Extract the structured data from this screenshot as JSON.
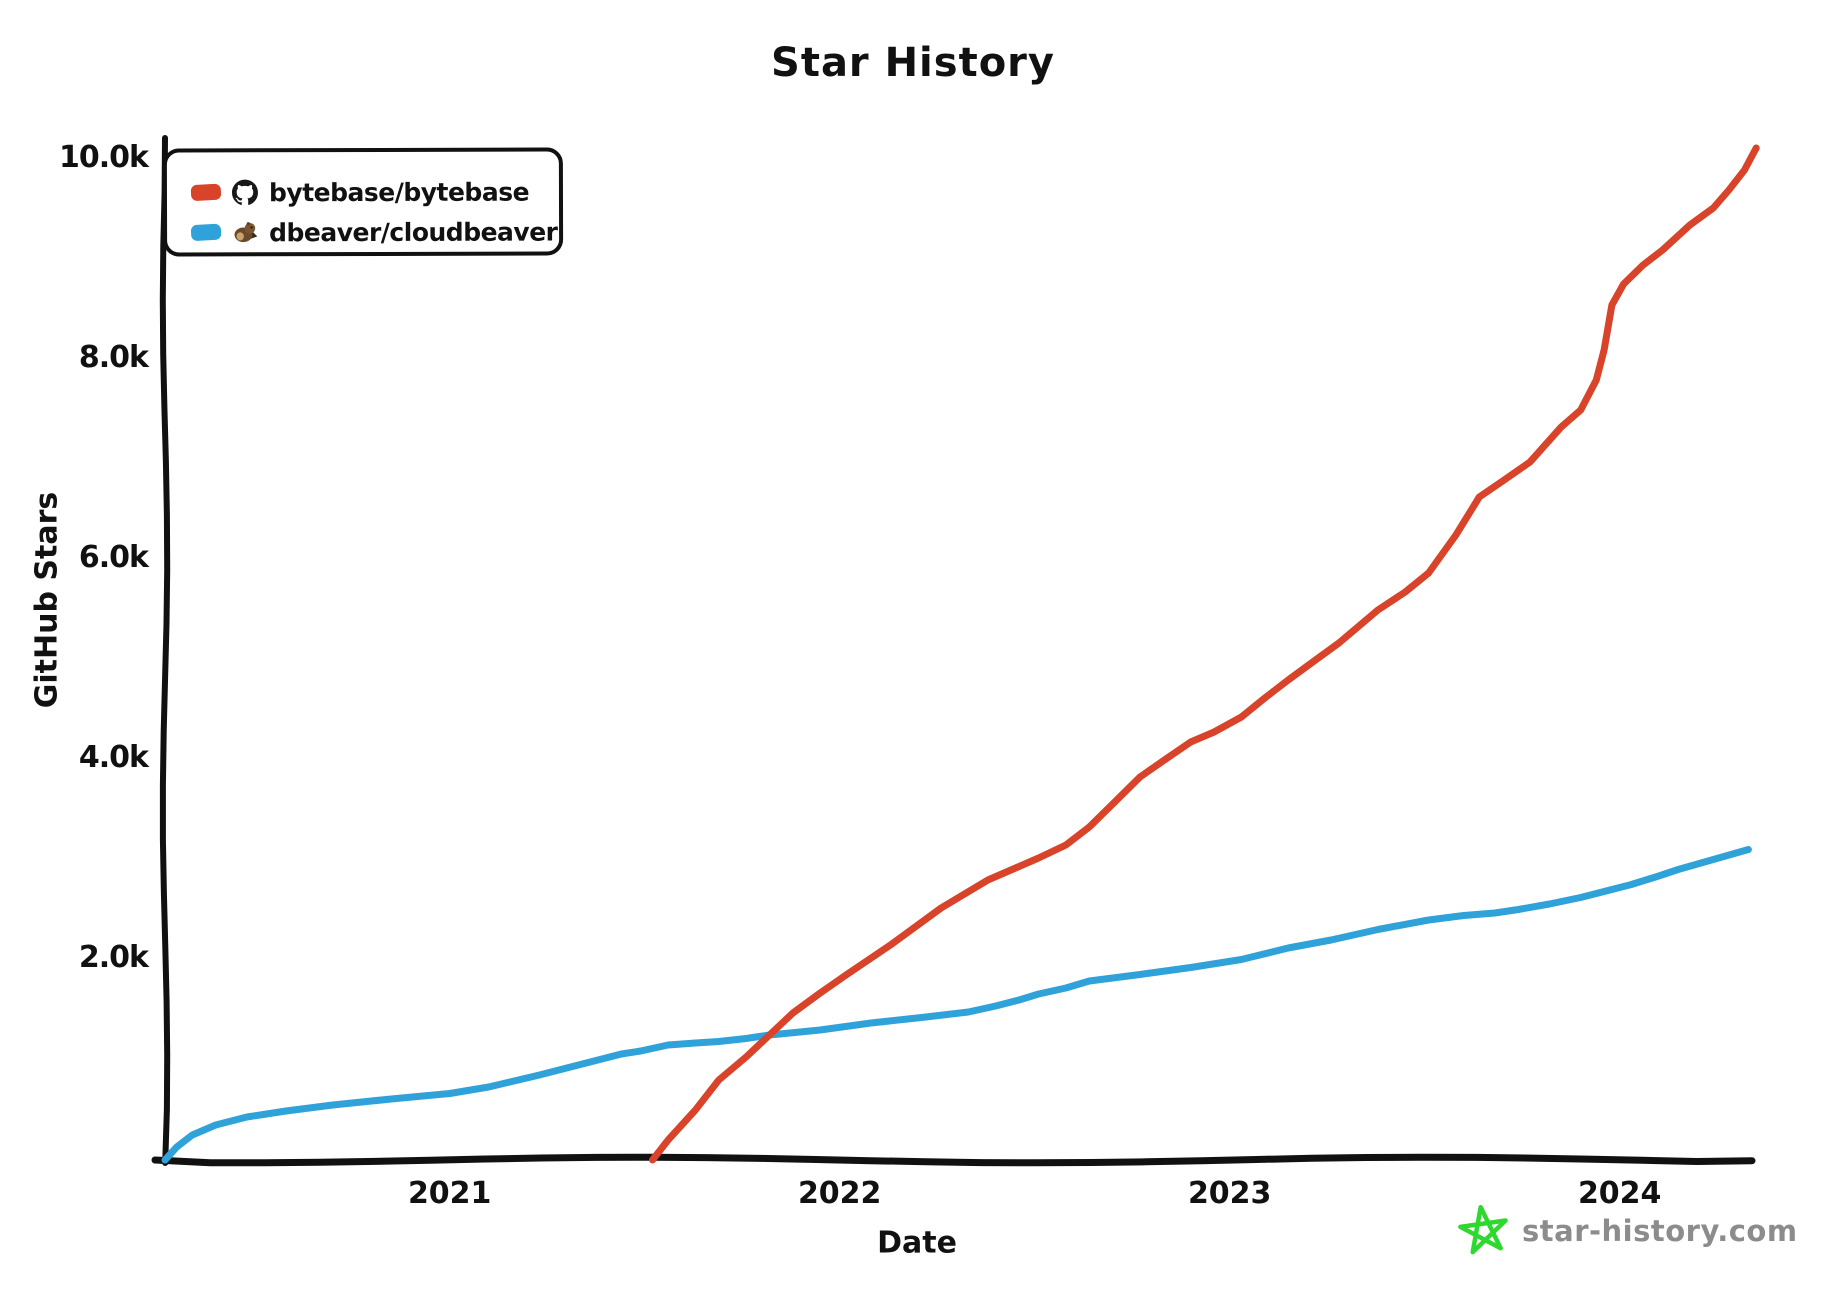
{
  "title": "Star History",
  "legend": {
    "items": [
      {
        "label": "bytebase/bytebase",
        "color": "#d8432a",
        "icon": "github-avatar"
      },
      {
        "label": "dbeaver/cloudbeaver",
        "color": "#30a2da",
        "icon": "beaver-avatar"
      }
    ]
  },
  "watermark": {
    "label": "star-history.com",
    "star_color": "#2fd82f",
    "text_color": "#8c8c8c"
  },
  "chart_data": {
    "type": "line",
    "title": "Star History",
    "xlabel": "Date",
    "ylabel": "GitHub Stars",
    "xlim": [
      2020.27,
      2024.38
    ],
    "ylim": [
      0,
      10300
    ],
    "grid": false,
    "legend_position": "top-left",
    "x_ticks": [
      {
        "value": 2021,
        "label": "2021"
      },
      {
        "value": 2022,
        "label": "2022"
      },
      {
        "value": 2023,
        "label": "2023"
      },
      {
        "value": 2024,
        "label": "2024"
      }
    ],
    "y_ticks": [
      {
        "value": 2000,
        "label": "2.0k"
      },
      {
        "value": 4000,
        "label": "4.0k"
      },
      {
        "value": 6000,
        "label": "6.0k"
      },
      {
        "value": 8000,
        "label": "8.0k"
      },
      {
        "value": 10000,
        "label": "10.0k"
      }
    ],
    "series": [
      {
        "name": "bytebase/bytebase",
        "color": "#d8432a",
        "points": [
          [
            2021.52,
            0
          ],
          [
            2021.56,
            200
          ],
          [
            2021.63,
            500
          ],
          [
            2021.69,
            800
          ],
          [
            2021.76,
            1030
          ],
          [
            2021.82,
            1250
          ],
          [
            2021.88,
            1470
          ],
          [
            2021.95,
            1670
          ],
          [
            2022.02,
            1860
          ],
          [
            2022.13,
            2150
          ],
          [
            2022.26,
            2520
          ],
          [
            2022.38,
            2800
          ],
          [
            2022.51,
            3020
          ],
          [
            2022.58,
            3150
          ],
          [
            2022.64,
            3330
          ],
          [
            2022.7,
            3560
          ],
          [
            2022.77,
            3830
          ],
          [
            2022.84,
            4020
          ],
          [
            2022.9,
            4180
          ],
          [
            2022.96,
            4280
          ],
          [
            2023.03,
            4430
          ],
          [
            2023.09,
            4620
          ],
          [
            2023.15,
            4800
          ],
          [
            2023.22,
            5000
          ],
          [
            2023.28,
            5170
          ],
          [
            2023.38,
            5500
          ],
          [
            2023.45,
            5680
          ],
          [
            2023.51,
            5870
          ],
          [
            2023.58,
            6250
          ],
          [
            2023.64,
            6630
          ],
          [
            2023.7,
            6790
          ],
          [
            2023.77,
            6980
          ],
          [
            2023.85,
            7330
          ],
          [
            2023.9,
            7500
          ],
          [
            2023.94,
            7800
          ],
          [
            2023.96,
            8100
          ],
          [
            2023.98,
            8550
          ],
          [
            2024.01,
            8760
          ],
          [
            2024.06,
            8950
          ],
          [
            2024.11,
            9100
          ],
          [
            2024.18,
            9350
          ],
          [
            2024.24,
            9520
          ],
          [
            2024.28,
            9700
          ],
          [
            2024.32,
            9900
          ],
          [
            2024.35,
            10120
          ]
        ]
      },
      {
        "name": "dbeaver/cloudbeaver",
        "color": "#30a2da",
        "points": [
          [
            2020.27,
            0
          ],
          [
            2020.3,
            130
          ],
          [
            2020.34,
            250
          ],
          [
            2020.4,
            350
          ],
          [
            2020.48,
            430
          ],
          [
            2020.58,
            490
          ],
          [
            2020.7,
            550
          ],
          [
            2020.85,
            610
          ],
          [
            2021.0,
            665
          ],
          [
            2021.1,
            730
          ],
          [
            2021.23,
            850
          ],
          [
            2021.36,
            980
          ],
          [
            2021.44,
            1060
          ],
          [
            2021.49,
            1090
          ],
          [
            2021.56,
            1150
          ],
          [
            2021.63,
            1170
          ],
          [
            2021.69,
            1185
          ],
          [
            2021.76,
            1215
          ],
          [
            2021.82,
            1250
          ],
          [
            2021.95,
            1300
          ],
          [
            2022.08,
            1370
          ],
          [
            2022.21,
            1425
          ],
          [
            2022.33,
            1480
          ],
          [
            2022.4,
            1540
          ],
          [
            2022.46,
            1600
          ],
          [
            2022.51,
            1660
          ],
          [
            2022.58,
            1720
          ],
          [
            2022.64,
            1790
          ],
          [
            2022.77,
            1855
          ],
          [
            2022.9,
            1925
          ],
          [
            2023.03,
            2005
          ],
          [
            2023.15,
            2120
          ],
          [
            2023.26,
            2200
          ],
          [
            2023.38,
            2305
          ],
          [
            2023.51,
            2400
          ],
          [
            2023.6,
            2445
          ],
          [
            2023.68,
            2470
          ],
          [
            2023.74,
            2505
          ],
          [
            2023.82,
            2560
          ],
          [
            2023.9,
            2625
          ],
          [
            2024.03,
            2755
          ],
          [
            2024.1,
            2840
          ],
          [
            2024.15,
            2905
          ],
          [
            2024.24,
            3005
          ],
          [
            2024.33,
            3105
          ]
        ]
      }
    ]
  }
}
